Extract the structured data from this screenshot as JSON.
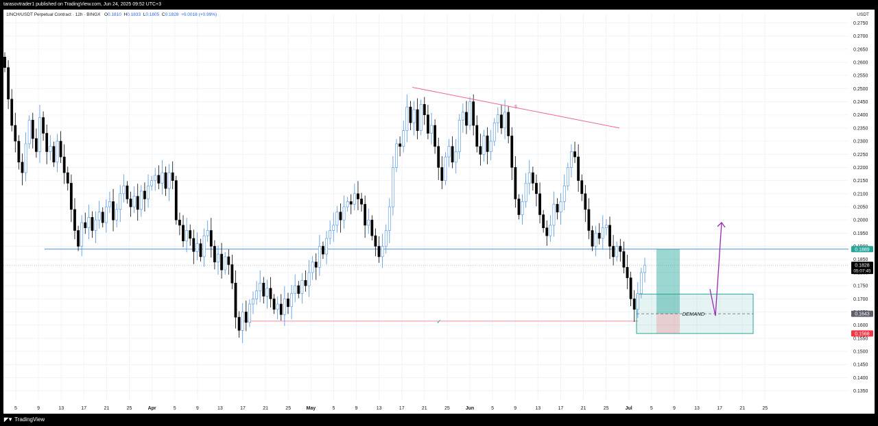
{
  "publisher_line": "tarasovtrader1 published on TradingView.com, Jun 24, 2025 09:52 UTC+3",
  "footer_brand": "TradingView",
  "legend": {
    "symbol": "1INCH/USDT Perpetual Contract · 12h · BINGX",
    "o_label": "O",
    "o_value": "0.1810",
    "h_label": "H",
    "h_value": "0.1833",
    "l_label": "L",
    "l_value": "0.1805",
    "c_label": "C",
    "c_value": "0.1828",
    "change": "+0.0018 (+0.99%)"
  },
  "axis_unit": "USDT",
  "price_labels": {
    "resistance": "0.1889",
    "current": "0.1828",
    "countdown": "05:07:45",
    "entry": "0.1643",
    "stop": "0.1568"
  },
  "annotations": {
    "demand": "DEMAND",
    "trendline_marker": "$",
    "check_marker": "✓"
  },
  "colors": {
    "up": "#ffffff",
    "up_border": "#4a90e2",
    "down": "#000000",
    "resistance": "#4a90e2",
    "support": "#f28b96",
    "trendline": "#f06292",
    "demand_zone": "#26a69a",
    "arrow": "#9c27b0",
    "stop_badge": "#f23645",
    "entry_badge": "#5d606b"
  },
  "chart_data": {
    "type": "candlestick",
    "interval": "12h",
    "y_ticks": [
      "0.2750",
      "0.2700",
      "0.2650",
      "0.2600",
      "0.2550",
      "0.2500",
      "0.2450",
      "0.2400",
      "0.2350",
      "0.2300",
      "0.2250",
      "0.2200",
      "0.2150",
      "0.2100",
      "0.2050",
      "0.2000",
      "0.1950",
      "0.1900",
      "0.1850",
      "0.1800",
      "0.1750",
      "0.1700",
      "0.1650",
      "0.1600",
      "0.1550",
      "0.1500",
      "0.1450",
      "0.1400",
      "0.1350"
    ],
    "ylim": [
      0.1315,
      0.2785
    ],
    "x_ticks": [
      {
        "label": "5",
        "bold": false
      },
      {
        "label": "9",
        "bold": false
      },
      {
        "label": "13",
        "bold": false
      },
      {
        "label": "17",
        "bold": false
      },
      {
        "label": "21",
        "bold": false
      },
      {
        "label": "25",
        "bold": false
      },
      {
        "label": "Apr",
        "bold": true
      },
      {
        "label": "5",
        "bold": false
      },
      {
        "label": "9",
        "bold": false
      },
      {
        "label": "13",
        "bold": false
      },
      {
        "label": "17",
        "bold": false
      },
      {
        "label": "21",
        "bold": false
      },
      {
        "label": "25",
        "bold": false
      },
      {
        "label": "May",
        "bold": true
      },
      {
        "label": "5",
        "bold": false
      },
      {
        "label": "9",
        "bold": false
      },
      {
        "label": "13",
        "bold": false
      },
      {
        "label": "17",
        "bold": false
      },
      {
        "label": "21",
        "bold": false
      },
      {
        "label": "25",
        "bold": false
      },
      {
        "label": "Jun",
        "bold": true
      },
      {
        "label": "5",
        "bold": false
      },
      {
        "label": "9",
        "bold": false
      },
      {
        "label": "13",
        "bold": false
      },
      {
        "label": "17",
        "bold": false
      },
      {
        "label": "21",
        "bold": false
      },
      {
        "label": "25",
        "bold": false
      },
      {
        "label": "Jul",
        "bold": true
      },
      {
        "label": "5",
        "bold": false
      },
      {
        "label": "9",
        "bold": false
      },
      {
        "label": "13",
        "bold": false
      },
      {
        "label": "17",
        "bold": false
      },
      {
        "label": "21",
        "bold": false
      },
      {
        "label": "25",
        "bold": false
      }
    ],
    "candles_close_path": [
      0.258,
      0.246,
      0.236,
      0.23,
      0.222,
      0.218,
      0.229,
      0.238,
      0.231,
      0.226,
      0.239,
      0.233,
      0.226,
      0.228,
      0.222,
      0.23,
      0.224,
      0.218,
      0.214,
      0.204,
      0.196,
      0.19,
      0.199,
      0.197,
      0.201,
      0.196,
      0.2,
      0.203,
      0.199,
      0.205,
      0.207,
      0.2,
      0.204,
      0.21,
      0.213,
      0.208,
      0.205,
      0.209,
      0.204,
      0.211,
      0.208,
      0.213,
      0.215,
      0.217,
      0.214,
      0.218,
      0.212,
      0.218,
      0.215,
      0.2,
      0.198,
      0.192,
      0.196,
      0.193,
      0.188,
      0.191,
      0.186,
      0.194,
      0.196,
      0.19,
      0.184,
      0.187,
      0.181,
      0.186,
      0.183,
      0.176,
      0.163,
      0.158,
      0.165,
      0.161,
      0.168,
      0.17,
      0.173,
      0.176,
      0.171,
      0.174,
      0.17,
      0.166,
      0.168,
      0.164,
      0.17,
      0.167,
      0.172,
      0.175,
      0.172,
      0.177,
      0.175,
      0.18,
      0.184,
      0.182,
      0.19,
      0.187,
      0.193,
      0.196,
      0.198,
      0.203,
      0.2,
      0.205,
      0.207,
      0.206,
      0.21,
      0.208,
      0.206,
      0.198,
      0.2,
      0.194,
      0.19,
      0.186,
      0.19,
      0.196,
      0.205,
      0.22,
      0.229,
      0.228,
      0.234,
      0.243,
      0.237,
      0.242,
      0.234,
      0.244,
      0.24,
      0.233,
      0.236,
      0.228,
      0.22,
      0.215,
      0.224,
      0.228,
      0.222,
      0.226,
      0.238,
      0.241,
      0.236,
      0.245,
      0.236,
      0.228,
      0.225,
      0.232,
      0.226,
      0.23,
      0.237,
      0.24,
      0.235,
      0.241,
      0.232,
      0.22,
      0.208,
      0.202,
      0.207,
      0.214,
      0.218,
      0.214,
      0.21,
      0.202,
      0.197,
      0.194,
      0.198,
      0.206,
      0.203,
      0.207,
      0.213,
      0.22,
      0.226,
      0.224,
      0.215,
      0.21,
      0.204,
      0.196,
      0.19,
      0.195,
      0.193,
      0.197,
      0.198,
      0.19,
      0.186,
      0.19,
      0.188,
      0.182,
      0.178,
      0.17,
      0.166,
      0.172,
      0.18,
      0.1828
    ],
    "levels": {
      "resistance": 0.1889,
      "support": 0.1615,
      "entry": 0.1643,
      "stop": 0.1568,
      "demand_top": 0.1718,
      "demand_bottom": 0.1568,
      "target": 0.1889,
      "current": 0.1828
    },
    "trendline": {
      "from_price": 0.2505,
      "to_price": 0.235
    },
    "demand_label": "DEMAND",
    "grid": true,
    "price_axis": "right"
  }
}
